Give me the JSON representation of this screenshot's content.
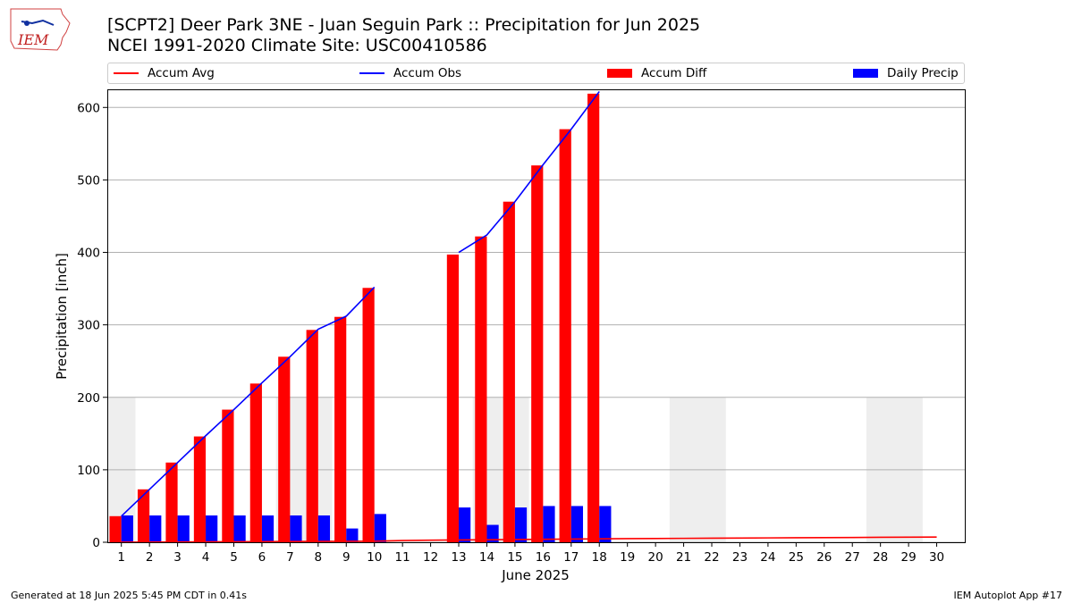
{
  "header": {
    "title": "[SCPT2] Deer Park 3NE - Juan Seguin Park :: Precipitation for Jun 2025",
    "subtitle": "NCEI 1991-2020 Climate Site: USC00410586",
    "logo_text": "IEM"
  },
  "footer": {
    "generated": "Generated at 18 Jun 2025 5:45 PM CDT in 0.41s",
    "app": "IEM Autoplot App #17"
  },
  "colors": {
    "accum_avg": "#ff0000",
    "accum_obs": "#0000ff",
    "accum_diff": "#ff0000",
    "daily_precip": "#0000ff",
    "weekend_shade": "#eeeeee",
    "grid": "#b0b0b0"
  },
  "chart_data": {
    "type": "bar",
    "xlabel": "June 2025",
    "ylabel": "Precipitation [inch]",
    "ylim": [
      0,
      625
    ],
    "xlim": [
      0.5,
      31
    ],
    "yticks": [
      0,
      100,
      200,
      300,
      400,
      500,
      600
    ],
    "grid": "horizontal",
    "legend_placement": "top",
    "x": [
      1,
      2,
      3,
      4,
      5,
      6,
      7,
      8,
      9,
      10,
      11,
      12,
      13,
      14,
      15,
      16,
      17,
      18,
      19,
      20,
      21,
      22,
      23,
      24,
      25,
      26,
      27,
      28,
      29,
      30
    ],
    "x_tick_labels": [
      "1",
      "2",
      "3",
      "4",
      "5",
      "6",
      "7",
      "8",
      "9",
      "10",
      "11",
      "12",
      "13",
      "14",
      "15",
      "16",
      "17",
      "18",
      "19",
      "20",
      "21",
      "22",
      "23",
      "24",
      "25",
      "26",
      "27",
      "28",
      "29",
      "30"
    ],
    "weekend_shading": [
      {
        "from": 0.5,
        "to": 1.5,
        "height": 200
      },
      {
        "from": 6.5,
        "to": 8.5,
        "height": 200
      },
      {
        "from": 13.5,
        "to": 15.5,
        "height": 200
      },
      {
        "from": 20.5,
        "to": 22.5,
        "height": 200
      },
      {
        "from": 27.5,
        "to": 29.5,
        "height": 200
      }
    ],
    "series": [
      {
        "name": "Accum Avg",
        "kind": "line",
        "values": [
          0.15,
          0.3,
          0.45,
          0.6,
          0.75,
          0.9,
          1.05,
          1.2,
          1.35,
          1.5,
          2.4,
          2.8,
          3.2,
          3.5,
          3.8,
          4.1,
          4.4,
          4.7,
          5.0,
          5.2,
          5.4,
          5.6,
          5.8,
          6.0,
          6.2,
          6.4,
          6.6,
          6.8,
          7.0,
          7.2
        ]
      },
      {
        "name": "Accum Obs",
        "kind": "line",
        "values": [
          36,
          73,
          110,
          147,
          183,
          220,
          256,
          294,
          312,
          352,
          null,
          null,
          400,
          424,
          470,
          521,
          570,
          622,
          null,
          null,
          null,
          null,
          null,
          null,
          null,
          null,
          null,
          null,
          null,
          null
        ]
      },
      {
        "name": "Accum Diff",
        "kind": "bar",
        "values": [
          36,
          73,
          110,
          146,
          183,
          219,
          256,
          293,
          311,
          351,
          null,
          null,
          397,
          422,
          470,
          520,
          570,
          619,
          null,
          null,
          null,
          null,
          null,
          null,
          null,
          null,
          null,
          null,
          null,
          null
        ]
      },
      {
        "name": "Daily Precip",
        "kind": "bar",
        "values": [
          37,
          37,
          37,
          37,
          37,
          37,
          37,
          37,
          19,
          39,
          null,
          null,
          48,
          24,
          48,
          50,
          50,
          50,
          null,
          null,
          null,
          null,
          null,
          null,
          null,
          null,
          null,
          null,
          null,
          null
        ]
      }
    ]
  }
}
